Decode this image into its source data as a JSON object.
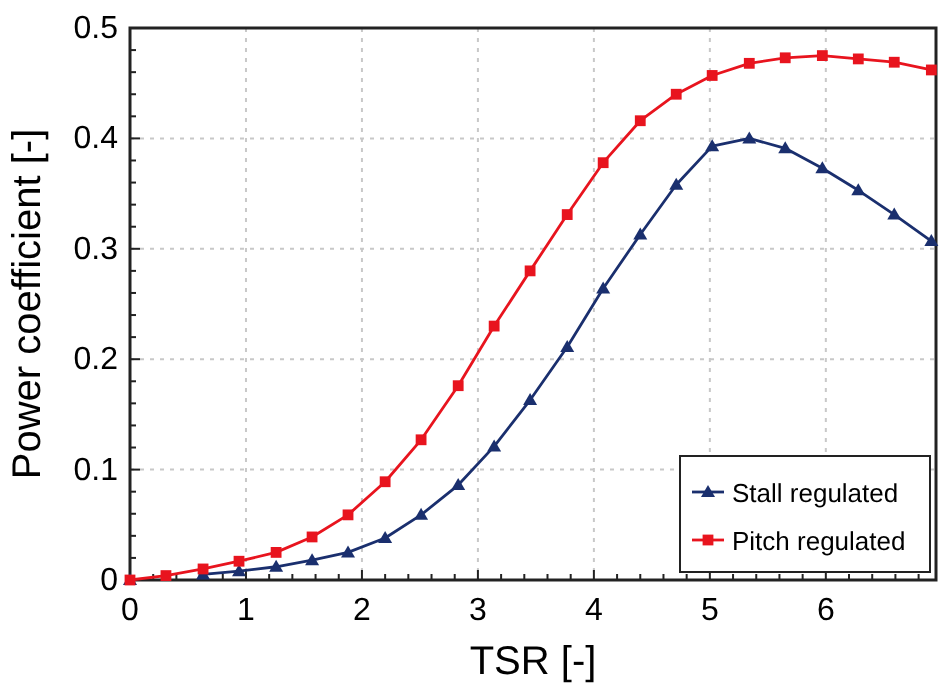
{
  "chart_data": {
    "type": "line",
    "xlabel": "TSR [-]",
    "ylabel": "Power coefficient [-]",
    "x": [
      0,
      0.31,
      0.63,
      0.94,
      1.26,
      1.57,
      1.88,
      2.2,
      2.51,
      2.83,
      3.14,
      3.45,
      3.77,
      4.08,
      4.4,
      4.71,
      5.02,
      5.34,
      5.65,
      5.97,
      6.28,
      6.59,
      6.91
    ],
    "xlim": [
      0,
      6.95
    ],
    "xticks": [
      0,
      1,
      2,
      3,
      4,
      5,
      6
    ],
    "ylim": [
      0,
      0.5
    ],
    "yticks": [
      0,
      0.1,
      0.2,
      0.3,
      0.4,
      0.5
    ],
    "grid": true,
    "legend": "bottom right",
    "line_style": "solid",
    "series": [
      {
        "name": "Stall regulated",
        "color": "#1a2f6e",
        "marker": "triangle",
        "values": [
          0,
          null,
          0.005,
          0.008,
          0.012,
          0.018,
          0.025,
          0.038,
          0.059,
          0.086,
          0.121,
          0.163,
          0.211,
          0.264,
          0.313,
          0.358,
          0.393,
          0.4,
          0.391,
          0.373,
          0.353,
          0.331,
          0.307
        ]
      },
      {
        "name": "Pitch regulated",
        "color": "#e8141e",
        "marker": "square",
        "values": [
          0,
          0.004,
          0.01,
          0.017,
          0.025,
          0.039,
          0.059,
          0.089,
          0.127,
          0.176,
          0.23,
          0.28,
          0.331,
          0.378,
          0.416,
          0.44,
          0.457,
          0.468,
          0.473,
          0.475,
          0.472,
          0.469,
          0.462
        ]
      }
    ]
  }
}
